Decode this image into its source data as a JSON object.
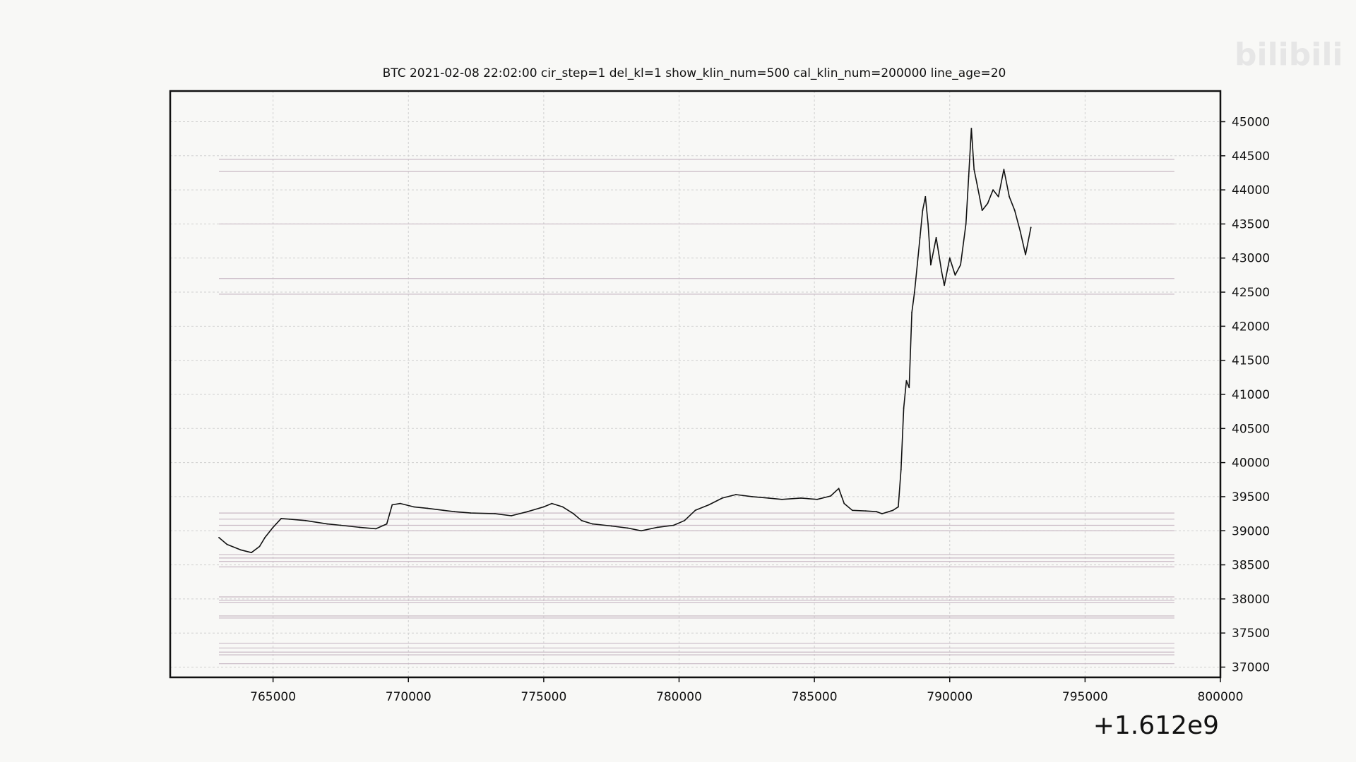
{
  "chart_data": {
    "type": "line",
    "title": "BTC    2021-02-08 22:02:00 cir_step=1 del_kl=1 show_klin_num=500 cal_klin_num=200000 line_age=20",
    "xlabel": "",
    "ylabel": "",
    "x_offset_label": "+1.612e9",
    "xlim": [
      761200,
      800000
    ],
    "ylim": [
      36850,
      45450
    ],
    "x_ticks": [
      765000,
      770000,
      775000,
      780000,
      785000,
      790000,
      795000,
      800000
    ],
    "y_ticks": [
      37000,
      37500,
      38000,
      38500,
      39000,
      39500,
      40000,
      40500,
      41000,
      41500,
      42000,
      42500,
      43000,
      43500,
      44000,
      44500,
      45000
    ],
    "grid": true,
    "colors": {
      "price": "#111111",
      "level": "#c8b8c4",
      "grid": "#d0d0d0",
      "axis": "#111111"
    },
    "series": [
      {
        "x": [
          763000,
          763300,
          763800,
          764200,
          764500,
          764700,
          765000,
          765300,
          765600,
          766200,
          767000,
          767500,
          768200,
          768800,
          769200,
          769400,
          769700,
          770200,
          770700,
          771300,
          771700,
          772300,
          773200,
          773800,
          774400,
          775000,
          775300,
          775700,
          776100,
          776400,
          776800,
          777500,
          778100,
          778600,
          779200,
          779800,
          780200,
          780600,
          781100,
          781600,
          782100,
          782700,
          783300,
          783800,
          784500,
          785100,
          785600,
          785900,
          786100,
          786400,
          786900,
          787300,
          787500,
          787900,
          788100,
          788200,
          788300,
          788400,
          788500,
          788600,
          788700,
          788800,
          788900,
          789000,
          789100,
          789200,
          789300,
          789500,
          789700,
          789800,
          790000,
          790200,
          790400,
          790600,
          790700,
          790800,
          790900,
          791000,
          791200,
          791400,
          791600,
          791800,
          792000,
          792200,
          792400,
          792600,
          792800,
          793000
        ],
        "values": [
          38900,
          38800,
          38720,
          38680,
          38770,
          38900,
          39050,
          39180,
          39170,
          39150,
          39100,
          39080,
          39050,
          39030,
          39100,
          39380,
          39400,
          39350,
          39330,
          39300,
          39280,
          39260,
          39250,
          39220,
          39280,
          39350,
          39400,
          39350,
          39250,
          39150,
          39100,
          39070,
          39040,
          39000,
          39050,
          39080,
          39150,
          39300,
          39380,
          39480,
          39530,
          39500,
          39480,
          39460,
          39480,
          39460,
          39510,
          39620,
          39400,
          39300,
          39290,
          39280,
          39250,
          39300,
          39350,
          39900,
          40800,
          41200,
          41100,
          42200,
          42500,
          42900,
          43300,
          43700,
          43900,
          43500,
          42900,
          43300,
          42800,
          42600,
          43000,
          42750,
          42900,
          43500,
          44200,
          44900,
          44300,
          44100,
          43700,
          43800,
          44000,
          43900,
          44300,
          43900,
          43700,
          43400,
          43050,
          43450
        ]
      }
    ],
    "levels": [
      44450,
      44270,
      43500,
      42700,
      42470,
      39260,
      39170,
      39080,
      39000,
      38650,
      38600,
      38550,
      38470,
      38030,
      37980,
      37950,
      37750,
      37720,
      37350,
      37280,
      37220,
      37180,
      37050
    ]
  },
  "watermark": {
    "text": "bilibili"
  }
}
